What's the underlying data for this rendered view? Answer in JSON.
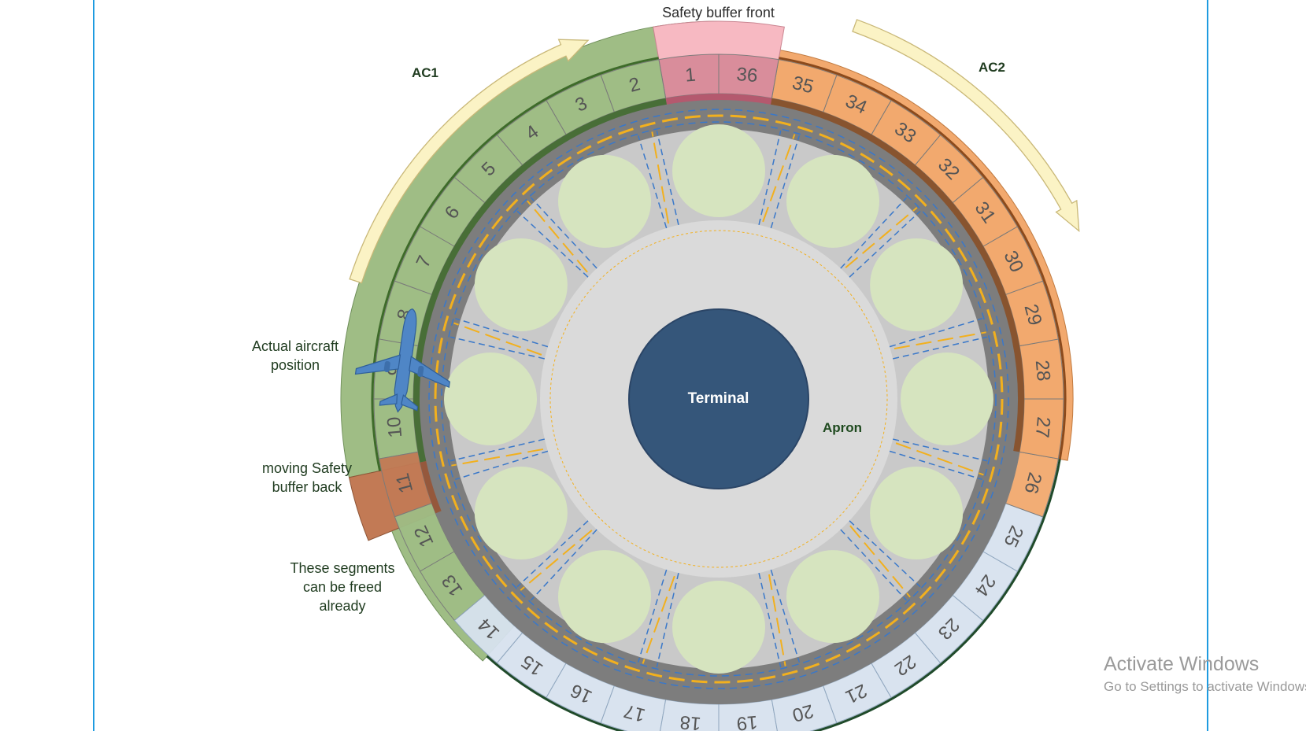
{
  "labels": {
    "safety_front": "Safety buffer front",
    "ac1": "AC1",
    "ac2": "AC2",
    "actual_aircraft": [
      "Actual aircraft",
      "position"
    ],
    "moving_buffer": [
      "moving Safety",
      "buffer back"
    ],
    "freed": [
      "These segments",
      "can be freed",
      "already"
    ],
    "terminal": "Terminal",
    "apron": "Apron"
  },
  "segments": {
    "numbers": [
      "1",
      "2",
      "3",
      "4",
      "5",
      "6",
      "7",
      "8",
      "9",
      "10",
      "11",
      "12",
      "13",
      "14",
      "15",
      "16",
      "17",
      "18",
      "19",
      "20",
      "21",
      "22",
      "23",
      "24",
      "25",
      "26",
      "27",
      "28",
      "29",
      "30",
      "31",
      "32",
      "33",
      "34",
      "35",
      "36"
    ],
    "groups": {
      "safety_front": [
        "1",
        "36"
      ],
      "ac1": [
        "2",
        "3",
        "4",
        "5",
        "6",
        "7",
        "8",
        "9",
        "10"
      ],
      "safety_back": [
        "11"
      ],
      "freed": [
        "12",
        "13"
      ],
      "free": [
        "14",
        "15",
        "16",
        "17",
        "18",
        "19",
        "20",
        "21",
        "22",
        "23",
        "24",
        "25"
      ],
      "ac2": [
        "26",
        "27",
        "28",
        "29",
        "30",
        "31",
        "32",
        "33",
        "34",
        "35"
      ]
    }
  },
  "stand_count": 12,
  "colors": {
    "ac1": "#9fbd85",
    "ac1_dark": "#3e6b2a",
    "ac2": "#f2a96e",
    "ac2_dark": "#8b4a1c",
    "safety_front": "#f7b9c2",
    "safety_front_inner": "#d88b99",
    "safety_back": "#c27a55",
    "free_segment": "#d7e2ef",
    "free_border": "#1f4a2a",
    "taxi_ring": "#7d7d7d",
    "apron_gray": "#c9c9c9",
    "apron_light": "#dadada",
    "stand": "#d6e4bf",
    "terminal": "#35567a",
    "yellow_line": "#f2b01e",
    "blue_dash": "#3a78c9",
    "arrow_fill": "#fbf3c5",
    "arrow_stroke": "#c9b878",
    "aircraft": "#4f86c6"
  },
  "watermark": {
    "title": "Activate Windows",
    "subtitle": "Go to Settings to activate Windows."
  }
}
